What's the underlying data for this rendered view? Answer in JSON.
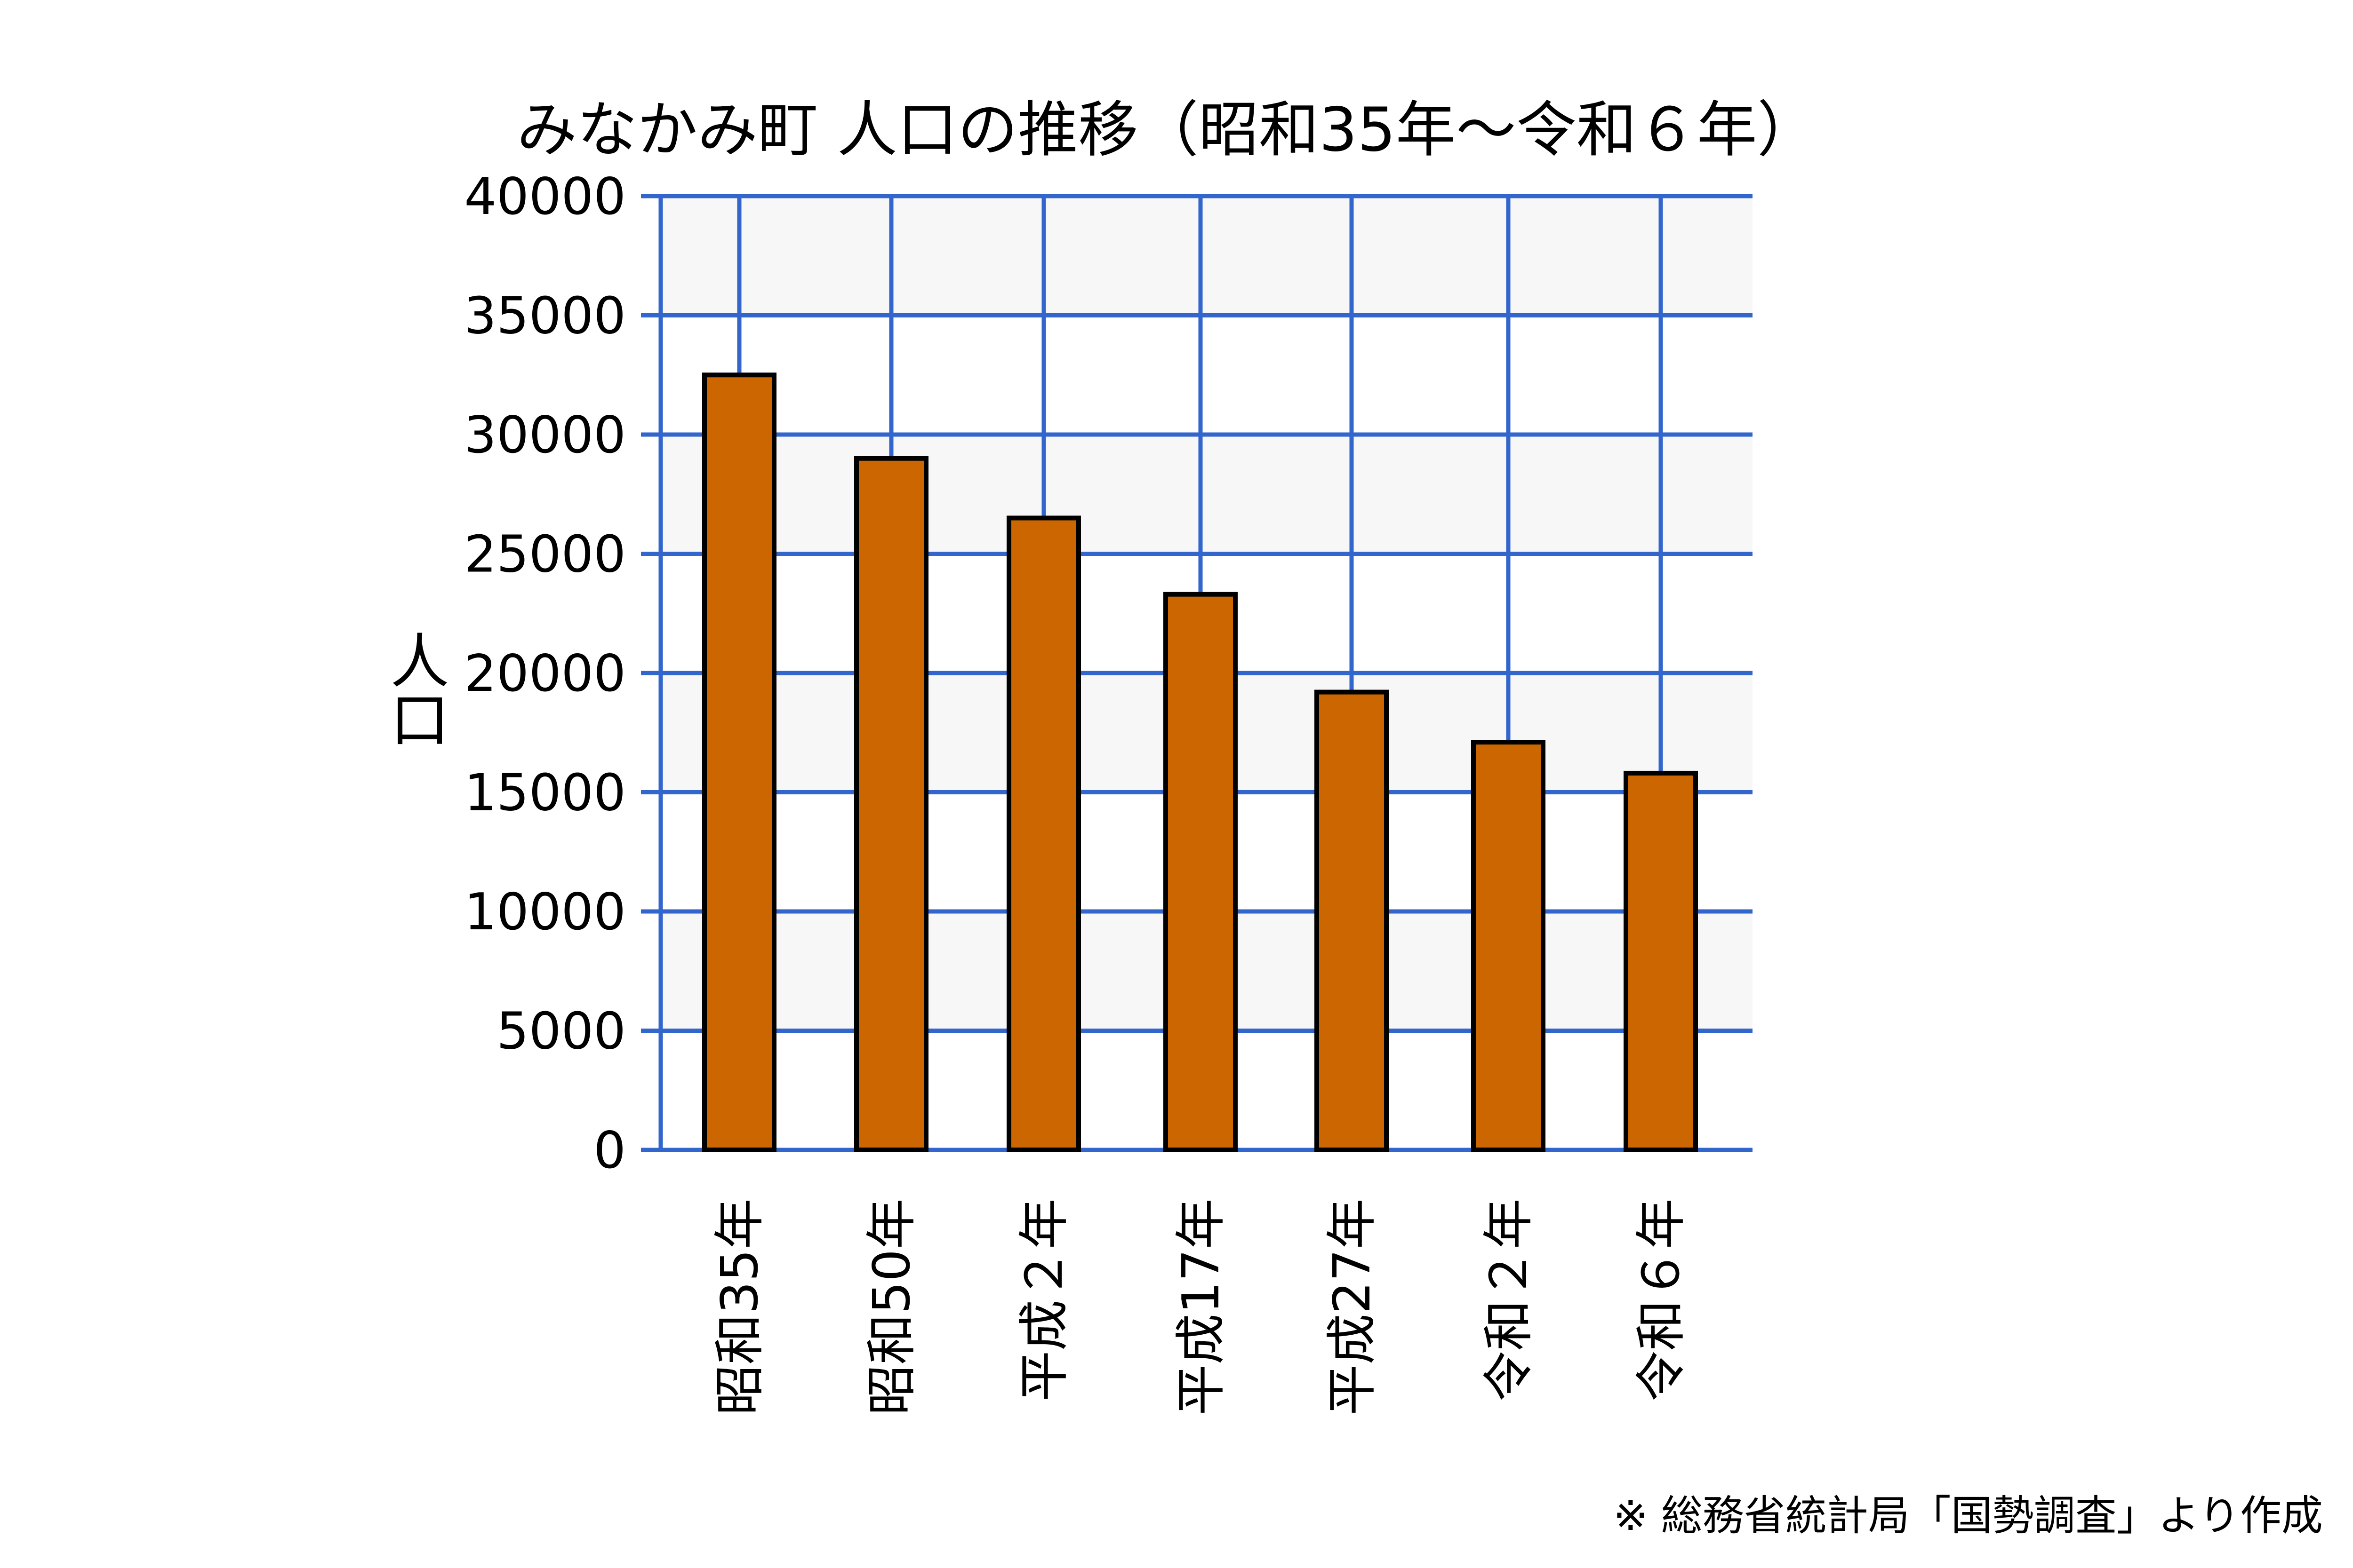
{
  "chart_data": {
    "type": "bar",
    "title": "みなかみ町 人口の推移（昭和35年～令和６年）",
    "xlabel": "",
    "ylabel": "人口",
    "categories": [
      "昭和35年",
      "昭和50年",
      "平成２年",
      "平成17年",
      "平成27年",
      "令和２年",
      "令和６年"
    ],
    "values": [
      32500,
      29000,
      26500,
      23300,
      19200,
      17100,
      15800
    ],
    "ylim": [
      0,
      40000
    ],
    "yticks": [
      0,
      5000,
      10000,
      15000,
      20000,
      25000,
      30000,
      35000,
      40000
    ],
    "grid": true,
    "legend": "none",
    "source_note": "※ 総務省統計局「国勢調査」より作成",
    "colors": {
      "bar": "#cc6600",
      "bar_edge": "#000000",
      "grid": "#3366cc",
      "band": "#f7f7f7"
    }
  }
}
